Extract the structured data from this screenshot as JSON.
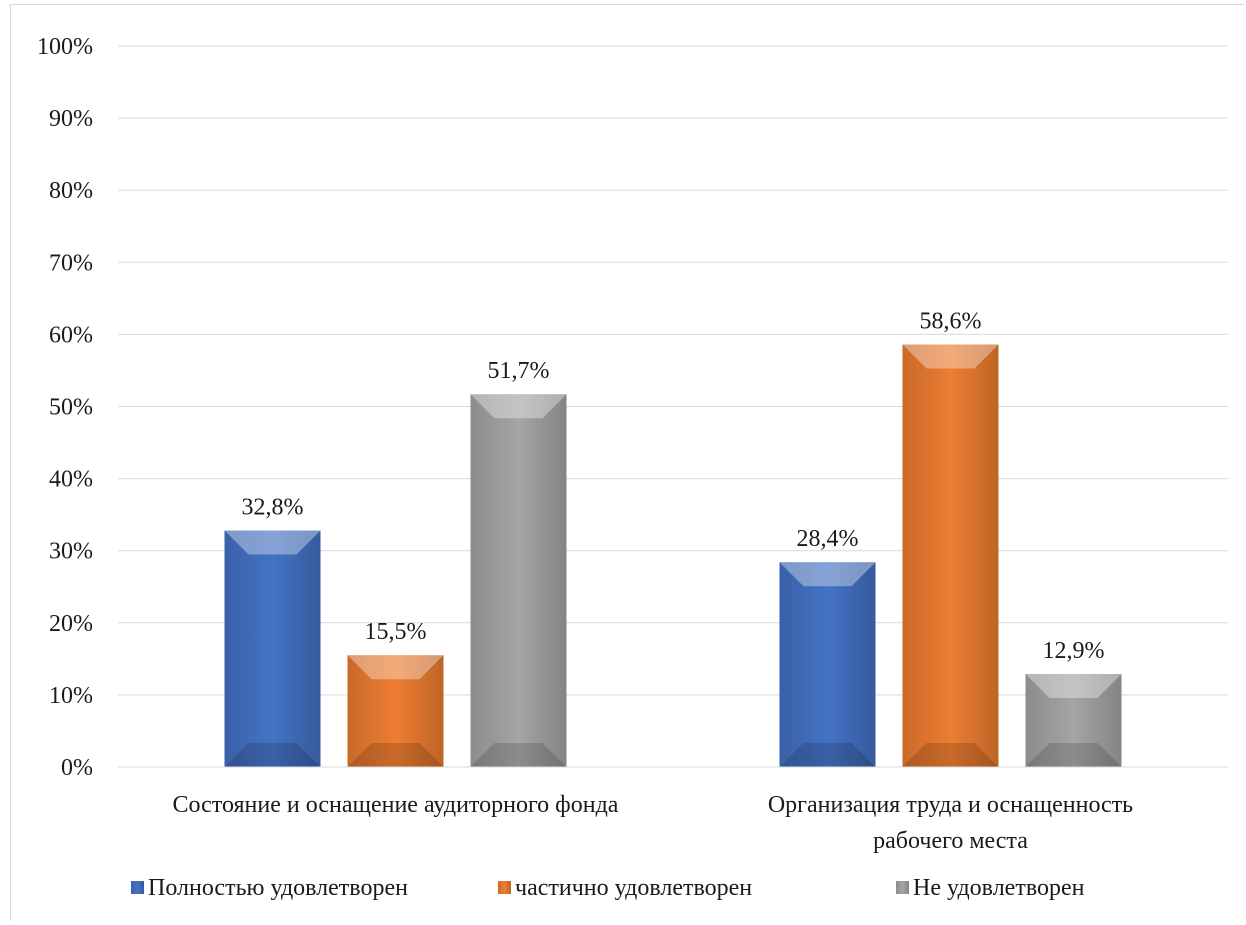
{
  "chart_data": {
    "type": "bar",
    "categories": [
      [
        "Состояние и оснащение аудиторного фонда"
      ],
      [
        "Организация труда и оснащенность",
        "рабочего места"
      ]
    ],
    "series": [
      {
        "name": "Полностью удовлетворен",
        "values": [
          32.8,
          28.4
        ],
        "labels": [
          "32,8%",
          "28,4%"
        ],
        "color": "#4472c4"
      },
      {
        "name": "частично удовлетворен",
        "values": [
          15.5,
          58.6
        ],
        "labels": [
          "15,5%",
          "58,6%"
        ],
        "color": "#ed7d31"
      },
      {
        "name": "Не удовлетворен",
        "values": [
          51.7,
          12.9
        ],
        "labels": [
          "51,7%",
          "12,9%"
        ],
        "color": "#a5a5a5"
      }
    ],
    "ylim": [
      0,
      100
    ],
    "yticks": [
      "0%",
      "10%",
      "20%",
      "30%",
      "40%",
      "50%",
      "60%",
      "70%",
      "80%",
      "90%",
      "100%"
    ],
    "grid": true,
    "legend_position": "bottom"
  }
}
